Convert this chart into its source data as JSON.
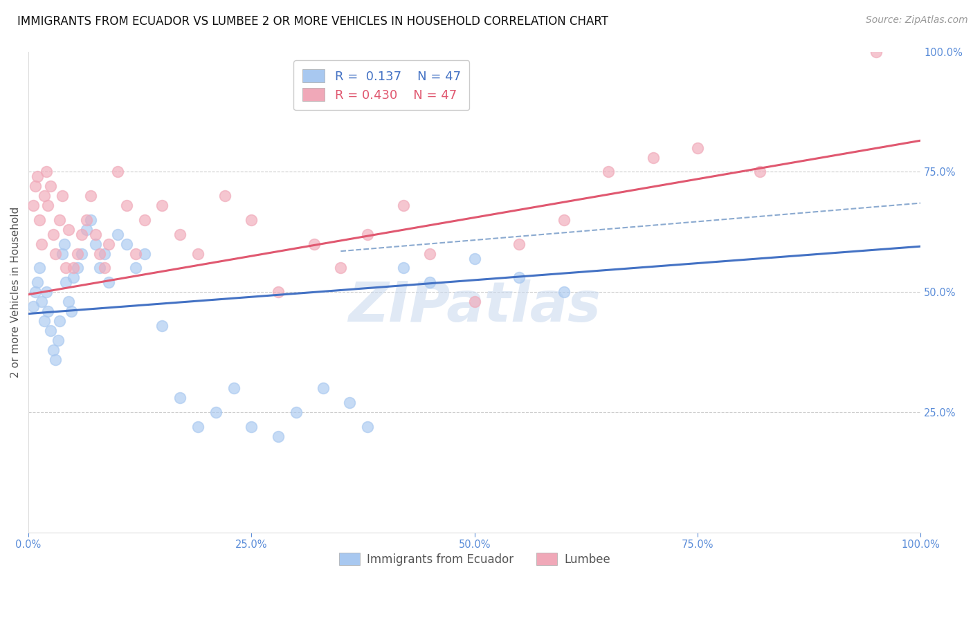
{
  "title": "IMMIGRANTS FROM ECUADOR VS LUMBEE 2 OR MORE VEHICLES IN HOUSEHOLD CORRELATION CHART",
  "source": "Source: ZipAtlas.com",
  "ylabel": "2 or more Vehicles in Household",
  "xlim": [
    0,
    1.0
  ],
  "ylim": [
    0,
    1.0
  ],
  "xtick_labels": [
    "0.0%",
    "25.0%",
    "50.0%",
    "75.0%",
    "100.0%"
  ],
  "xtick_vals": [
    0.0,
    0.25,
    0.5,
    0.75,
    1.0
  ],
  "ytick_labels": [
    "25.0%",
    "50.0%",
    "75.0%",
    "100.0%"
  ],
  "ytick_vals": [
    0.25,
    0.5,
    0.75,
    1.0
  ],
  "legend_r_blue": "R =  0.137",
  "legend_n_blue": "N = 47",
  "legend_r_pink": "R = 0.430",
  "legend_n_pink": "N = 47",
  "blue_color": "#A8C8F0",
  "pink_color": "#F0A8B8",
  "blue_line_color": "#4472C4",
  "pink_line_color": "#E05870",
  "blue_label": "Immigrants from Ecuador",
  "pink_label": "Lumbee",
  "watermark": "ZIPatlas",
  "watermark_color": "#C8D8EE",
  "blue_x": [
    0.005,
    0.008,
    0.01,
    0.012,
    0.015,
    0.018,
    0.02,
    0.022,
    0.025,
    0.028,
    0.03,
    0.033,
    0.035,
    0.038,
    0.04,
    0.042,
    0.045,
    0.048,
    0.05,
    0.055,
    0.06,
    0.065,
    0.07,
    0.075,
    0.08,
    0.085,
    0.09,
    0.1,
    0.11,
    0.12,
    0.13,
    0.15,
    0.17,
    0.19,
    0.21,
    0.23,
    0.25,
    0.28,
    0.3,
    0.33,
    0.36,
    0.38,
    0.42,
    0.45,
    0.5,
    0.55,
    0.6
  ],
  "blue_y": [
    0.47,
    0.5,
    0.52,
    0.55,
    0.48,
    0.44,
    0.5,
    0.46,
    0.42,
    0.38,
    0.36,
    0.4,
    0.44,
    0.58,
    0.6,
    0.52,
    0.48,
    0.46,
    0.53,
    0.55,
    0.58,
    0.63,
    0.65,
    0.6,
    0.55,
    0.58,
    0.52,
    0.62,
    0.6,
    0.55,
    0.58,
    0.43,
    0.28,
    0.22,
    0.25,
    0.3,
    0.22,
    0.2,
    0.25,
    0.3,
    0.27,
    0.22,
    0.55,
    0.52,
    0.57,
    0.53,
    0.5
  ],
  "pink_x": [
    0.005,
    0.008,
    0.01,
    0.012,
    0.015,
    0.018,
    0.02,
    0.022,
    0.025,
    0.028,
    0.03,
    0.035,
    0.038,
    0.042,
    0.045,
    0.05,
    0.055,
    0.06,
    0.065,
    0.07,
    0.075,
    0.08,
    0.085,
    0.09,
    0.1,
    0.11,
    0.12,
    0.13,
    0.15,
    0.17,
    0.19,
    0.22,
    0.25,
    0.28,
    0.32,
    0.35,
    0.38,
    0.42,
    0.45,
    0.5,
    0.55,
    0.6,
    0.65,
    0.7,
    0.75,
    0.82,
    0.95
  ],
  "pink_y": [
    0.68,
    0.72,
    0.74,
    0.65,
    0.6,
    0.7,
    0.75,
    0.68,
    0.72,
    0.62,
    0.58,
    0.65,
    0.7,
    0.55,
    0.63,
    0.55,
    0.58,
    0.62,
    0.65,
    0.7,
    0.62,
    0.58,
    0.55,
    0.6,
    0.75,
    0.68,
    0.58,
    0.65,
    0.68,
    0.62,
    0.58,
    0.7,
    0.65,
    0.5,
    0.6,
    0.55,
    0.62,
    0.68,
    0.58,
    0.48,
    0.6,
    0.65,
    0.75,
    0.78,
    0.8,
    0.75,
    1.0
  ],
  "blue_trend_x": [
    0.0,
    1.0
  ],
  "blue_trend_y": [
    0.455,
    0.595
  ],
  "pink_trend_x": [
    0.0,
    1.0
  ],
  "pink_trend_y": [
    0.495,
    0.815
  ],
  "dash_trend_x": [
    0.35,
    1.0
  ],
  "dash_trend_y": [
    0.585,
    0.685
  ],
  "title_fontsize": 12,
  "axis_label_fontsize": 11,
  "tick_fontsize": 10.5,
  "legend_fontsize": 13,
  "source_fontsize": 10,
  "right_tick_color": "#5B8DD9",
  "bottom_tick_color": "#5B8DD9"
}
